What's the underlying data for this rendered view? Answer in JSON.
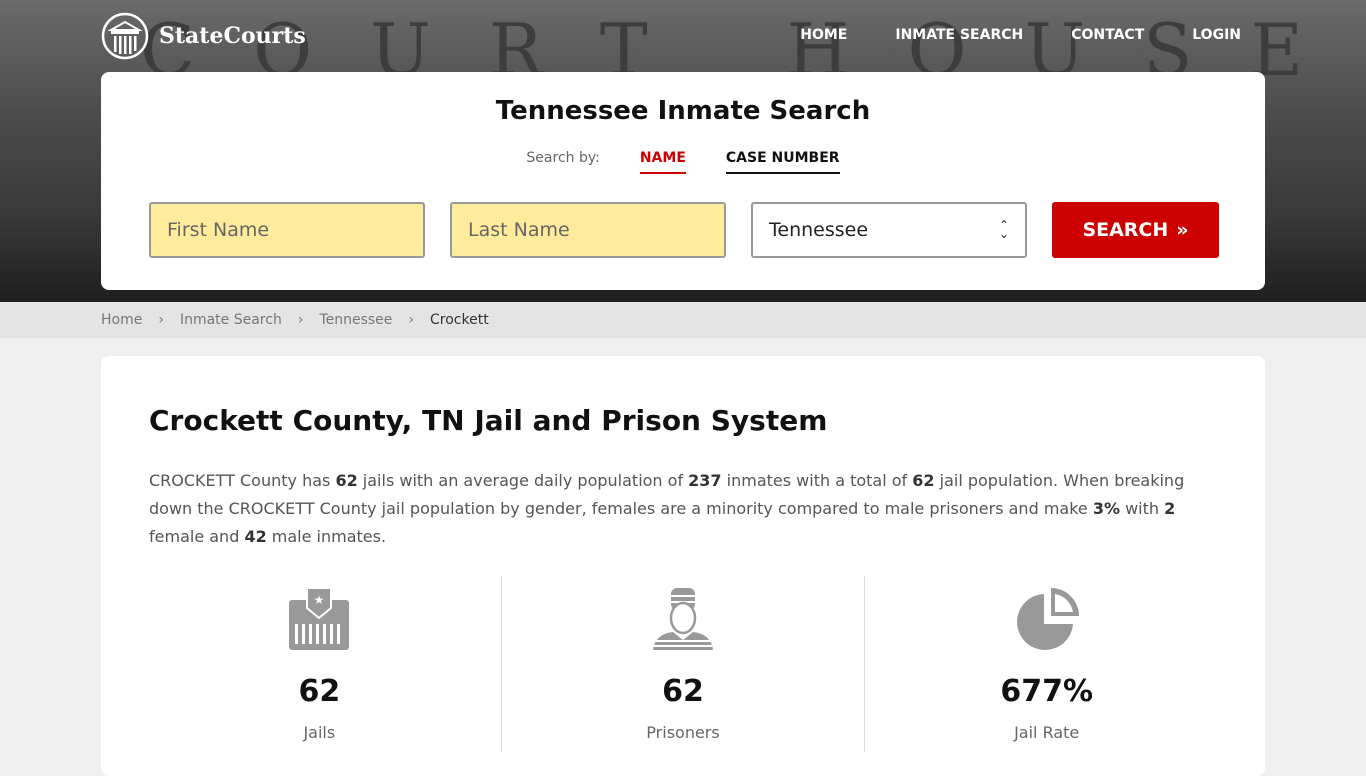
{
  "header": {
    "brand": "StateCourts",
    "bg_text": "COURT HOUSE",
    "nav": [
      "HOME",
      "INMATE SEARCH",
      "CONTACT",
      "LOGIN"
    ]
  },
  "search": {
    "title": "Tennessee Inmate Search",
    "search_by": "Search by:",
    "tabs": [
      "NAME",
      "CASE NUMBER"
    ],
    "first_placeholder": "First Name",
    "last_placeholder": "Last Name",
    "state": "Tennessee",
    "button": "SEARCH",
    "accent": "#cc0000"
  },
  "breadcrumb": [
    "Home",
    "Inmate Search",
    "Tennessee",
    "Crockett"
  ],
  "main": {
    "title": "Crockett County, TN Jail and Prison System",
    "p": [
      "CROCKETT County has ",
      "62",
      " jails with an average daily population of ",
      "237",
      " inmates with a total of ",
      "62",
      " jail population. When breaking down the CROCKETT County jail population by gender, females are a minority compared to male prisoners and make ",
      "3%",
      " with ",
      "2",
      " female and ",
      "42",
      " male inmates."
    ],
    "stats": [
      {
        "icon": "jail-icon",
        "value": "62",
        "label": "Jails"
      },
      {
        "icon": "prisoner-icon",
        "value": "62",
        "label": "Prisoners"
      },
      {
        "icon": "pie-chart-icon",
        "value": "677%",
        "label": "Jail Rate"
      }
    ]
  }
}
